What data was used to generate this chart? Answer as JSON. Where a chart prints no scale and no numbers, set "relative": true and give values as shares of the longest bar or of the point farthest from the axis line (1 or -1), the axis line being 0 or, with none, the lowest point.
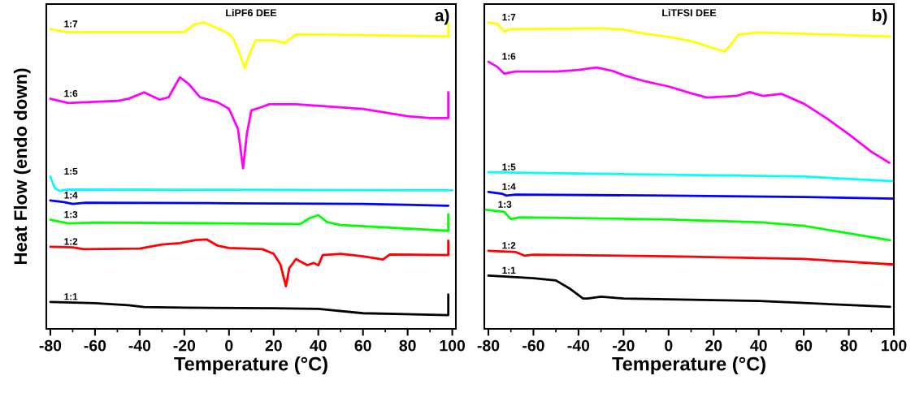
{
  "chart_data": [
    {
      "type": "line",
      "title": "LiPF6 DEE",
      "ylabel": "Heat Flow (endo down)",
      "xlabel": "Temperature (°C)",
      "annotations": [
        "a)"
      ],
      "relative": true,
      "legend": false,
      "grid": false,
      "xlim": [
        -81.8,
        101.6
      ],
      "xticks": [
        -80,
        -60,
        -40,
        -20,
        0,
        20,
        40,
        60,
        80,
        100
      ],
      "series": [
        {
          "name": "1:7",
          "color": "#ffff00",
          "x": [
            -80,
            -72,
            -60,
            -20,
            -15,
            -11,
            0,
            2,
            5,
            7,
            9,
            12,
            20,
            25,
            30,
            60,
            98.2,
            98.2
          ],
          "values": [
            0.978,
            0.968,
            0.969,
            0.969,
            0.995,
            1.0,
            0.963,
            0.946,
            0.894,
            0.851,
            0.894,
            0.942,
            0.942,
            0.933,
            0.961,
            0.959,
            0.954,
            0.997
          ]
        },
        {
          "name": "1:6",
          "color": "#ff00ff",
          "x": [
            -80,
            -72,
            -60,
            -50,
            -45,
            -38,
            -31,
            -27,
            -22,
            -18,
            -13,
            -5,
            0,
            4,
            6.3,
            8,
            10,
            14,
            18,
            30,
            60,
            80,
            90,
            98.2,
            98.2
          ],
          "values": [
            0.751,
            0.737,
            0.741,
            0.744,
            0.751,
            0.772,
            0.748,
            0.756,
            0.821,
            0.799,
            0.756,
            0.739,
            0.718,
            0.653,
            0.524,
            0.636,
            0.713,
            0.722,
            0.733,
            0.733,
            0.718,
            0.694,
            0.688,
            0.688,
            0.772
          ]
        },
        {
          "name": "1:5",
          "color": "#00ffff",
          "x": [
            -80,
            -78,
            -76,
            -72,
            0,
            100
          ],
          "values": [
            0.497,
            0.46,
            0.45,
            0.455,
            0.454,
            0.452
          ]
        },
        {
          "name": "1:4",
          "color": "#0000ff",
          "x": [
            -80,
            -74,
            -70,
            -64,
            0,
            60,
            98.2
          ],
          "values": [
            0.419,
            0.414,
            0.408,
            0.412,
            0.41,
            0.408,
            0.402
          ]
        },
        {
          "name": "1:3",
          "color": "#00ff00",
          "x": [
            -80,
            -72,
            -60,
            0,
            32,
            36,
            40,
            44,
            50,
            98.2,
            98.2
          ],
          "values": [
            0.356,
            0.344,
            0.347,
            0.344,
            0.342,
            0.361,
            0.371,
            0.348,
            0.339,
            0.32,
            0.374
          ]
        },
        {
          "name": "1:2",
          "color": "#ff0000",
          "x": [
            -80,
            -70,
            -65,
            -40,
            -30,
            -22,
            -15,
            -10,
            -5,
            0,
            15,
            20,
            23,
            25.5,
            27,
            30,
            35,
            38,
            40,
            42,
            50,
            60,
            69,
            72,
            98.2,
            98.2
          ],
          "values": [
            0.268,
            0.266,
            0.26,
            0.262,
            0.275,
            0.28,
            0.29,
            0.292,
            0.271,
            0.264,
            0.26,
            0.245,
            0.211,
            0.139,
            0.198,
            0.228,
            0.208,
            0.215,
            0.207,
            0.241,
            0.245,
            0.237,
            0.226,
            0.243,
            0.241,
            0.288
          ]
        },
        {
          "name": "1:1",
          "color": "#000000",
          "x": [
            -80,
            -60,
            -45,
            -38,
            -20,
            20,
            40,
            60,
            98.2,
            98.2
          ],
          "values": [
            0.088,
            0.084,
            0.077,
            0.071,
            0.069,
            0.067,
            0.065,
            0.051,
            0.045,
            0.112
          ]
        }
      ]
    },
    {
      "type": "line",
      "title": "LiTFSI DEE",
      "xlabel": "Temperature (°C)",
      "annotations": [
        "b)"
      ],
      "relative": true,
      "legend": false,
      "grid": false,
      "xlim": [
        -81.8,
        100
      ],
      "xticks": [
        -80,
        -60,
        -40,
        -20,
        0,
        20,
        40,
        60,
        80,
        100
      ],
      "series": [
        {
          "name": "1:7",
          "color": "#ffff00",
          "x": [
            -80,
            -76,
            -73,
            -70,
            -60,
            -30,
            -20,
            -10,
            0,
            10,
            20,
            25,
            28,
            31,
            40,
            60,
            98.3
          ],
          "values": [
            1.0,
            0.995,
            0.971,
            0.978,
            0.979,
            0.981,
            0.976,
            0.963,
            0.953,
            0.939,
            0.916,
            0.905,
            0.931,
            0.96,
            0.967,
            0.963,
            0.954
          ]
        },
        {
          "name": "1:6",
          "color": "#ff00ff",
          "x": [
            -80,
            -76,
            -73,
            -68,
            -50,
            -40,
            -32,
            -25,
            -20,
            -10,
            0,
            10,
            17,
            30,
            36,
            42,
            50,
            60,
            70,
            80,
            90,
            98
          ],
          "values": [
            0.872,
            0.855,
            0.833,
            0.84,
            0.84,
            0.845,
            0.853,
            0.842,
            0.828,
            0.807,
            0.791,
            0.769,
            0.755,
            0.76,
            0.773,
            0.76,
            0.767,
            0.735,
            0.688,
            0.635,
            0.578,
            0.542
          ]
        },
        {
          "name": "1:5",
          "color": "#00ffff",
          "x": [
            -80,
            0,
            60,
            100
          ],
          "values": [
            0.511,
            0.503,
            0.497,
            0.482
          ]
        },
        {
          "name": "1:4",
          "color": "#0000ff",
          "x": [
            -80,
            -74,
            -72,
            -68,
            0,
            60,
            100
          ],
          "values": [
            0.447,
            0.441,
            0.435,
            0.438,
            0.435,
            0.43,
            0.425
          ]
        },
        {
          "name": "1:3",
          "color": "#00ff00",
          "x": [
            -81.8,
            -73,
            -70,
            -66,
            0,
            40,
            60,
            80,
            98.3
          ],
          "values": [
            0.389,
            0.382,
            0.358,
            0.364,
            0.357,
            0.348,
            0.336,
            0.312,
            0.289
          ]
        },
        {
          "name": "1:2",
          "color": "#ff0000",
          "x": [
            -80,
            -68,
            -64,
            -60,
            0,
            60,
            100
          ],
          "values": [
            0.255,
            0.251,
            0.239,
            0.242,
            0.237,
            0.228,
            0.21
          ]
        },
        {
          "name": "1:1",
          "color": "#000000",
          "x": [
            -80,
            -60,
            -50,
            -44,
            -38,
            -36,
            -30,
            -20,
            40,
            98.3
          ],
          "values": [
            0.174,
            0.165,
            0.158,
            0.132,
            0.099,
            0.099,
            0.105,
            0.099,
            0.091,
            0.072
          ]
        }
      ]
    }
  ]
}
